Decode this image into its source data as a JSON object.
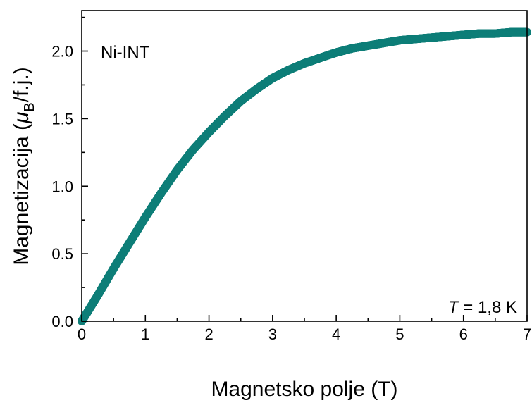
{
  "chart_data": {
    "type": "scatter",
    "xlabel": "Magnetsko polje (T)",
    "ylabel": {
      "prefix": "Magnetizacija (",
      "mu": "μ",
      "sub": "B",
      "suffix": "/f.j.)"
    },
    "xlim": [
      0,
      7
    ],
    "ylim": [
      0,
      2.3
    ],
    "x_ticks": [
      0,
      1,
      2,
      3,
      4,
      5,
      6,
      7
    ],
    "x_tick_labels": [
      "0",
      "1",
      "2",
      "3",
      "4",
      "5",
      "6",
      "7"
    ],
    "y_ticks": [
      0,
      0.5,
      1.0,
      1.5,
      2.0
    ],
    "y_tick_labels": [
      "0.0",
      "0.5",
      "1.0",
      "1.5",
      "2.0"
    ],
    "grid": false,
    "series": [
      {
        "color": "#0e7e78",
        "x": [
          0.0,
          0.25,
          0.5,
          0.75,
          1.0,
          1.25,
          1.5,
          1.75,
          2.0,
          2.25,
          2.5,
          2.75,
          3.0,
          3.25,
          3.5,
          3.75,
          4.0,
          4.25,
          4.5,
          4.75,
          5.0,
          5.25,
          5.5,
          5.75,
          6.0,
          6.25,
          6.5,
          6.75,
          7.0
        ],
        "y": [
          0.0,
          0.19,
          0.39,
          0.58,
          0.77,
          0.95,
          1.12,
          1.27,
          1.4,
          1.52,
          1.63,
          1.72,
          1.8,
          1.86,
          1.91,
          1.95,
          1.99,
          2.02,
          2.04,
          2.06,
          2.08,
          2.09,
          2.1,
          2.11,
          2.12,
          2.13,
          2.13,
          2.14,
          2.14
        ]
      }
    ],
    "annotations": {
      "sample": "Ni-INT",
      "temperature": {
        "symbol": "T",
        "value": " = 1,8 K"
      }
    }
  }
}
